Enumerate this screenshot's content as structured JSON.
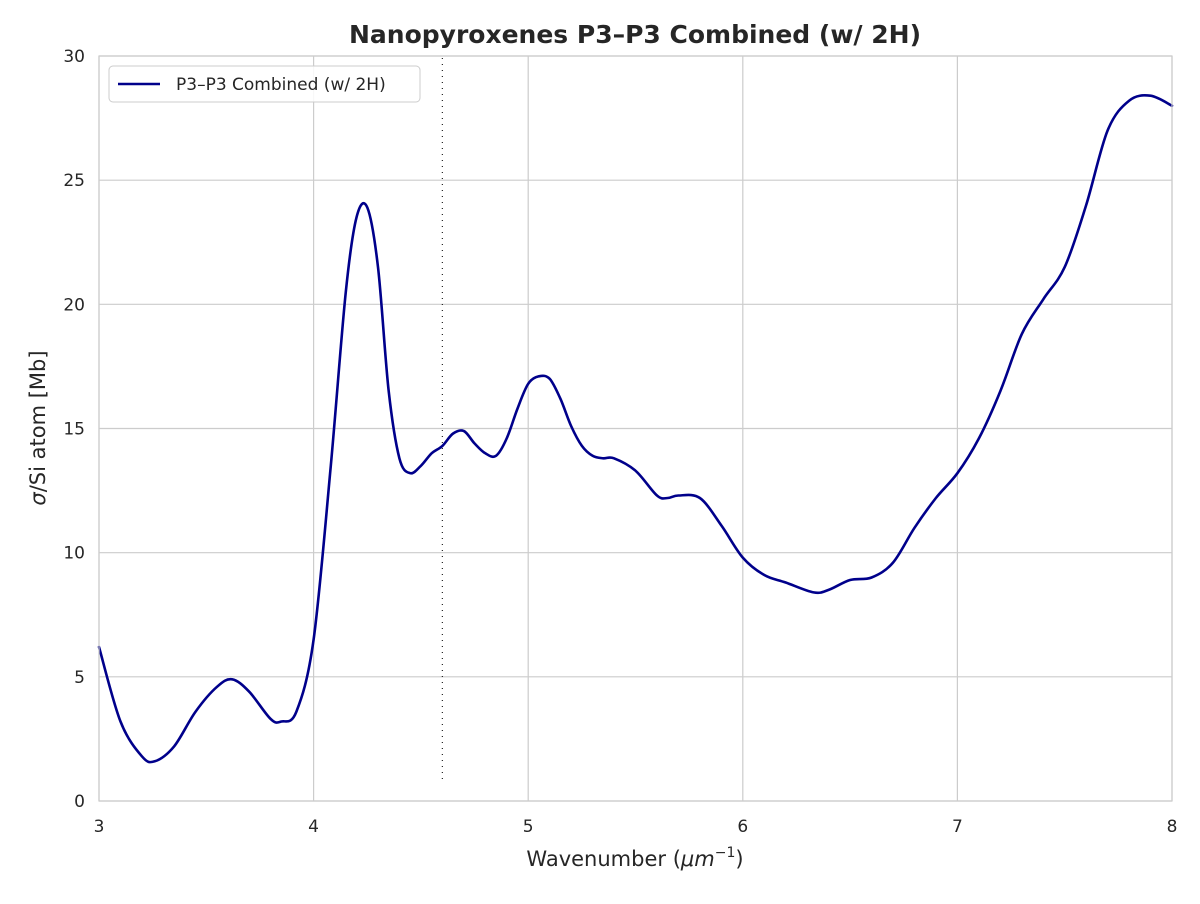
{
  "chart_data": {
    "type": "line",
    "title": "Nanopyroxenes P3–P3 Combined (w/ 2H)",
    "xlabel_main": "Wavenumber (",
    "xlabel_math": "μm",
    "xlabel_sup": "−1",
    "xlabel_close": ")",
    "ylabel_sigma": "σ",
    "ylabel_rest": "/Si atom [Mb]",
    "xlim": [
      3,
      8
    ],
    "ylim": [
      0,
      30
    ],
    "xticks": [
      3,
      4,
      5,
      6,
      7,
      8
    ],
    "yticks": [
      0,
      5,
      10,
      15,
      20,
      25,
      30
    ],
    "grid": true,
    "legend_position": "top-left",
    "vertical_marker_x": 4.6,
    "series": [
      {
        "name": "P3–P3 Combined (w/ 2H)",
        "color": "#00008b",
        "x": [
          3.0,
          3.1,
          3.2,
          3.26,
          3.35,
          3.45,
          3.55,
          3.62,
          3.7,
          3.8,
          3.85,
          3.92,
          4.0,
          4.08,
          4.15,
          4.2,
          4.25,
          4.3,
          4.35,
          4.4,
          4.45,
          4.5,
          4.55,
          4.6,
          4.65,
          4.7,
          4.75,
          4.8,
          4.85,
          4.9,
          4.95,
          5.0,
          5.05,
          5.1,
          5.15,
          5.2,
          5.25,
          5.3,
          5.35,
          5.4,
          5.5,
          5.6,
          5.65,
          5.7,
          5.8,
          5.9,
          6.0,
          6.1,
          6.2,
          6.33,
          6.4,
          6.5,
          6.6,
          6.7,
          6.8,
          6.9,
          7.0,
          7.1,
          7.2,
          7.3,
          7.4,
          7.5,
          7.6,
          7.7,
          7.8,
          7.9,
          8.0
        ],
        "y": [
          6.2,
          3.2,
          1.8,
          1.6,
          2.2,
          3.6,
          4.6,
          4.9,
          4.4,
          3.3,
          3.2,
          3.6,
          6.5,
          13.5,
          20.5,
          23.5,
          23.9,
          21.5,
          16.5,
          13.8,
          13.2,
          13.5,
          14.0,
          14.3,
          14.8,
          14.9,
          14.4,
          14.0,
          13.9,
          14.6,
          15.8,
          16.8,
          17.1,
          17.0,
          16.2,
          15.1,
          14.3,
          13.9,
          13.8,
          13.8,
          13.3,
          12.3,
          12.2,
          12.3,
          12.2,
          11.1,
          9.8,
          9.1,
          8.8,
          8.4,
          8.5,
          8.9,
          9.0,
          9.6,
          11.0,
          12.2,
          13.2,
          14.6,
          16.5,
          18.8,
          20.2,
          21.5,
          24.0,
          27.0,
          28.2,
          28.4,
          28.0
        ]
      }
    ]
  }
}
